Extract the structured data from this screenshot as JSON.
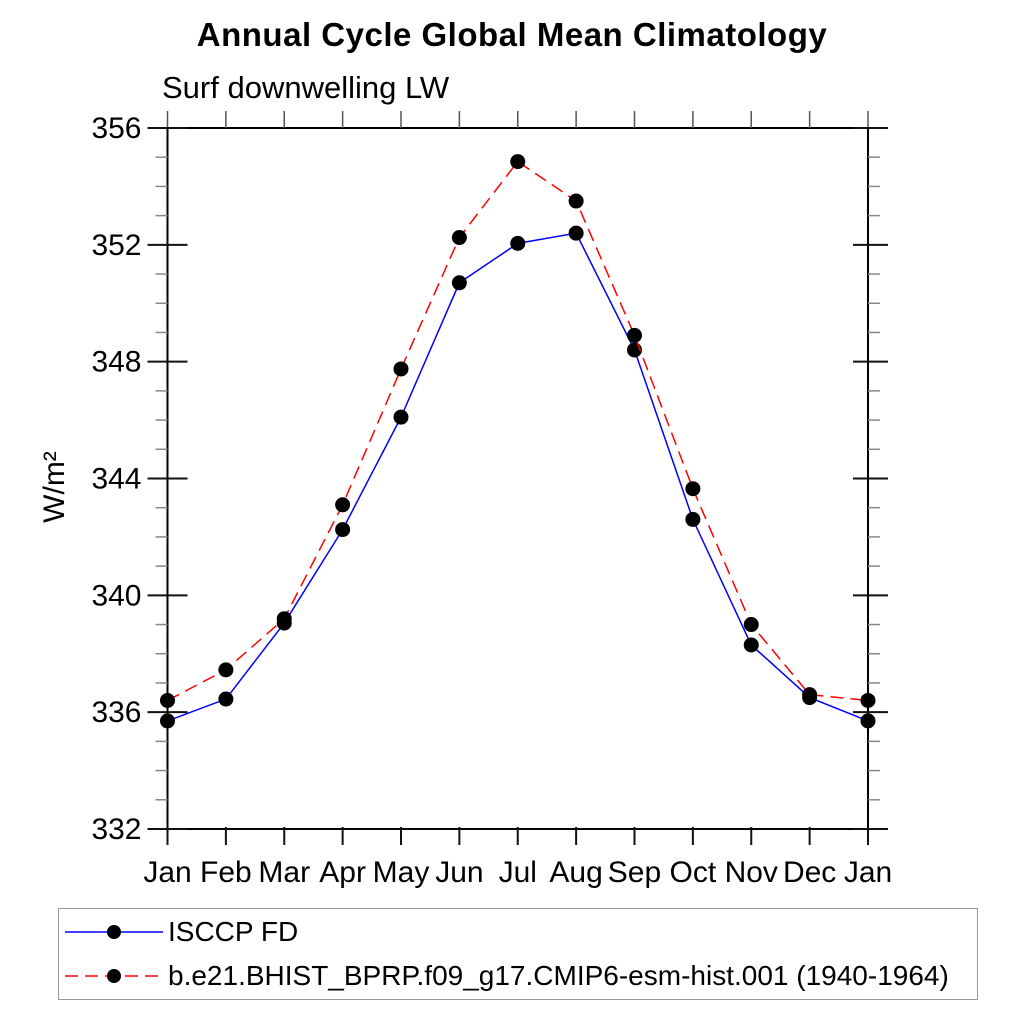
{
  "chart_data": {
    "type": "line",
    "title": "Annual Cycle Global Mean Climatology",
    "subtitle": "Surf downwelling LW",
    "ylabel": "W/m²",
    "xlabel": "",
    "categories": [
      "Jan",
      "Feb",
      "Mar",
      "Apr",
      "May",
      "Jun",
      "Jul",
      "Aug",
      "Sep",
      "Oct",
      "Nov",
      "Dec",
      "Jan"
    ],
    "ylim": [
      332,
      356
    ],
    "y_major_ticks": [
      332,
      336,
      340,
      344,
      348,
      352,
      356
    ],
    "y_minor_step": 1,
    "grid": false,
    "legend_position": "bottom-left",
    "frame_color": "#000000",
    "marker": "filled-circle",
    "series": [
      {
        "name": "ISCCP FD",
        "color": "#0000ff",
        "dash": "solid",
        "marker_color": "#000000",
        "values": [
          335.7,
          336.45,
          339.05,
          342.25,
          346.1,
          350.7,
          352.05,
          352.4,
          348.4,
          342.6,
          338.3,
          336.5,
          335.7
        ]
      },
      {
        "name": "b.e21.BHIST_BPRP.f09_g17.CMIP6-esm-hist.001 (1940-1964)",
        "color": "#ff0000",
        "dash": "dashed",
        "marker_color": "#000000",
        "values": [
          336.4,
          337.45,
          339.2,
          343.1,
          347.75,
          352.25,
          354.85,
          353.5,
          348.9,
          343.65,
          339.0,
          336.6,
          336.4
        ]
      }
    ]
  }
}
